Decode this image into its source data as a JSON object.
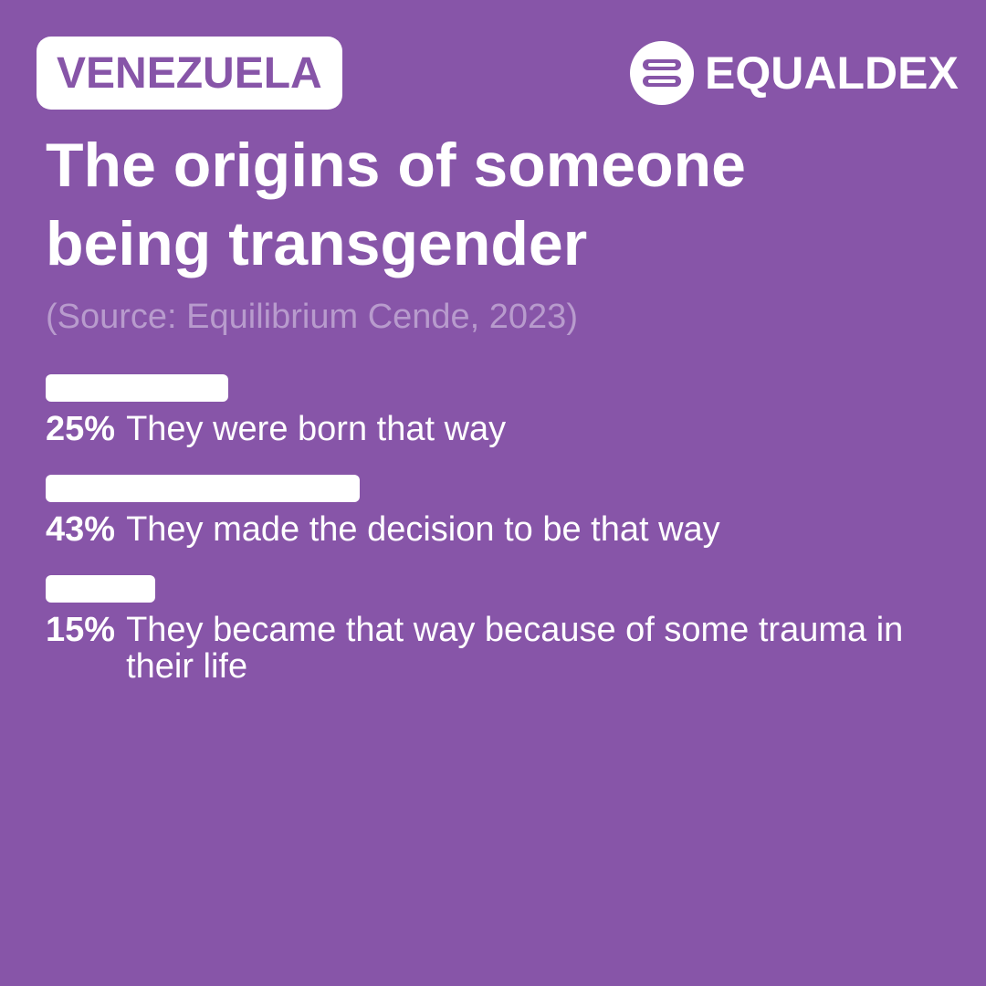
{
  "header": {
    "country": "VENEZUELA",
    "brand": "EQUALDEX"
  },
  "title": "The origins of someone being transgender",
  "source": "(Source: Equilibrium Cende, 2023)",
  "colors": {
    "background": "#8755a8",
    "bar": "#ffffff",
    "source_text": "#b89bcd"
  },
  "icons": {
    "brand": "equaldex-logo-icon"
  },
  "chart_data": {
    "type": "bar",
    "orientation": "horizontal",
    "categories": [
      "They were born that way",
      "They made the decision to be that way",
      "They became that way because of some trauma in their life"
    ],
    "values": [
      25,
      43,
      15
    ],
    "value_labels": [
      "25%",
      "43%",
      "15%"
    ],
    "unit": "%",
    "xlim": [
      0,
      100
    ],
    "title": "The origins of someone being transgender",
    "grid": false,
    "legend": "none"
  }
}
